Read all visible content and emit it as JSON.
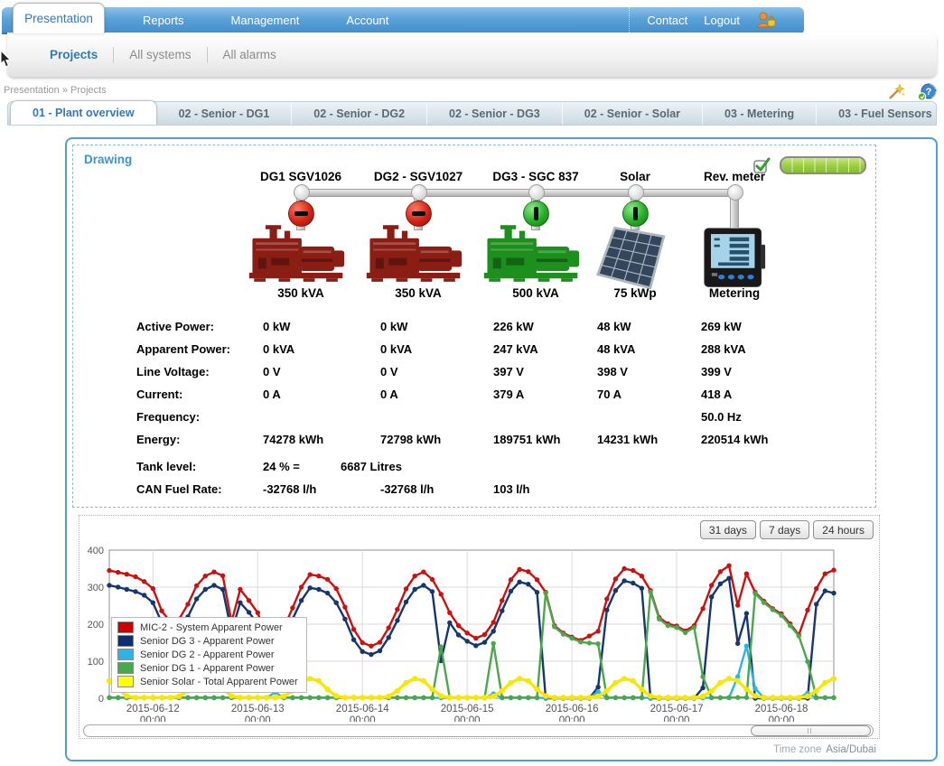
{
  "nav": {
    "active": {
      "label": "Presentation"
    },
    "items": [
      {
        "label": "Reports"
      },
      {
        "label": "Management"
      },
      {
        "label": "Account"
      }
    ],
    "right_items": [
      {
        "label": "Contact"
      },
      {
        "label": "Logout"
      }
    ]
  },
  "subnav": {
    "items": [
      {
        "label": "Projects",
        "active": true
      },
      {
        "label": "All systems",
        "active": false
      },
      {
        "label": "All alarms",
        "active": false
      }
    ]
  },
  "breadcrumb": "Presentation » Projects",
  "page_tabs": [
    {
      "label": "01 - Plant overview",
      "active": true
    },
    {
      "label": "02 - Senior - DG1",
      "active": false
    },
    {
      "label": "02 - Senior - DG2",
      "active": false
    },
    {
      "label": "02 - Senior - DG3",
      "active": false
    },
    {
      "label": "02 - Senior - Solar",
      "active": false
    },
    {
      "label": "03 - Metering",
      "active": false
    },
    {
      "label": "03 - Fuel Sensors",
      "active": false
    }
  ],
  "drawing": {
    "title": "Drawing",
    "status": {
      "check_icon": "green-check",
      "progress_segments": 7,
      "progress_color": "#9ccc3f"
    },
    "units": [
      {
        "name": "DG1 SGV1026",
        "capacity": "350 kVA",
        "type": "generator",
        "color": "#8b1e14",
        "breaker": "open"
      },
      {
        "name": "DG2 - SGV1027",
        "capacity": "350 kVA",
        "type": "generator",
        "color": "#8b1e14",
        "breaker": "open"
      },
      {
        "name": "DG3 - SGC 837",
        "capacity": "500 kVA",
        "type": "generator",
        "color": "#1d8f1d",
        "breaker": "closed"
      },
      {
        "name": "Solar",
        "capacity": "75 kWp",
        "type": "solar",
        "color": "#33465c",
        "breaker": "closed"
      },
      {
        "name": "Rev. meter",
        "capacity": "Metering",
        "type": "meter",
        "color": "#181818",
        "breaker": "none"
      }
    ],
    "rows": [
      {
        "label": "Active Power:",
        "values": [
          "0 kW",
          "0 kW",
          "226 kW",
          "48 kW",
          "269 kW"
        ]
      },
      {
        "label": "Apparent Power:",
        "values": [
          "0 kVA",
          "0 kVA",
          "247 kVA",
          "48 kVA",
          "288 kVA"
        ]
      },
      {
        "label": "Line Voltage:",
        "values": [
          "0 V",
          "0 V",
          "397 V",
          "398 V",
          "399 V"
        ]
      },
      {
        "label": "Current:",
        "values": [
          "0 A",
          "0 A",
          "379 A",
          "70 A",
          "418 A"
        ]
      },
      {
        "label": "Frequency:",
        "values": [
          "",
          "",
          "",
          "",
          "50.0 Hz"
        ]
      },
      {
        "label": "Energy:",
        "values": [
          "74278 kWh",
          "72798 kWh",
          "189751 kWh",
          "14231 kWh",
          "220514 kWh"
        ]
      },
      {
        "label": "Tank level:",
        "values": [
          "24 % =",
          "6687 Litres",
          "",
          "",
          ""
        ]
      },
      {
        "label": "CAN Fuel Rate:",
        "values": [
          "-32768 l/h",
          "-32768 l/h",
          "103 l/h",
          "",
          ""
        ]
      }
    ]
  },
  "chart": {
    "range_buttons": [
      "31 days",
      "7 days",
      "24 hours"
    ],
    "timezone_label": "Time zone",
    "timezone_value": "Asia/Dubai"
  },
  "chart_data": {
    "type": "line",
    "title": "",
    "xlabel": "",
    "ylabel": "",
    "ylim": [
      0,
      400
    ],
    "yticks": [
      400,
      300,
      200,
      100,
      0
    ],
    "grid": true,
    "legend_position": "middle-left",
    "x_start": "2015-06-11 14:00",
    "x_step_hours": 2,
    "x_points": 84,
    "x_tick_indices": [
      5,
      17,
      29,
      41,
      53,
      65,
      77
    ],
    "x_tick_labels": [
      {
        "date": "2015-06-12",
        "time": "00:00"
      },
      {
        "date": "2015-06-13",
        "time": "00:00"
      },
      {
        "date": "2015-06-14",
        "time": "00:00"
      },
      {
        "date": "2015-06-15",
        "time": "00:00"
      },
      {
        "date": "2015-06-16",
        "time": "00:00"
      },
      {
        "date": "2015-06-17",
        "time": "00:00"
      },
      {
        "date": "2015-06-18",
        "time": "00:00"
      }
    ],
    "series": [
      {
        "name": "MIC-2 - System Apparent Power",
        "color": "#cc0f0f",
        "swatch": "#cc0000",
        "values": [
          345,
          340,
          335,
          328,
          315,
          296,
          236,
          206,
          214,
          254,
          304,
          330,
          341,
          331,
          206,
          294,
          264,
          231,
          166,
          156,
          190,
          244,
          300,
          334,
          330,
          321,
          296,
          246,
          186,
          150,
          141,
          151,
          190,
          240,
          295,
          330,
          341,
          321,
          281,
          231,
          196,
          176,
          162,
          172,
          205,
          264,
          320,
          348,
          342,
          320,
          286,
          196,
          176,
          165,
          156,
          168,
          181,
          268,
          322,
          350,
          345,
          330,
          291,
          218,
          201,
          195,
          182,
          196,
          242,
          305,
          342,
          358,
          251,
          336,
          286,
          262,
          242,
          228,
          201,
          171,
          238,
          296,
          336,
          346
        ]
      },
      {
        "name": "Senior DG 3 - Apparent Power",
        "color": "#16366e",
        "swatch": "#0d2d6b",
        "values": [
          305,
          300,
          294,
          288,
          278,
          258,
          205,
          176,
          184,
          220,
          268,
          294,
          305,
          294,
          178,
          258,
          232,
          200,
          140,
          130,
          160,
          214,
          264,
          298,
          294,
          284,
          258,
          214,
          158,
          126,
          118,
          128,
          164,
          210,
          260,
          294,
          305,
          288,
          101,
          204,
          171,
          154,
          142,
          151,
          181,
          236,
          289,
          314,
          308,
          286,
          0,
          0,
          0,
          0,
          0,
          0,
          30,
          238,
          291,
          317,
          311,
          297,
          0,
          0,
          0,
          0,
          0,
          0,
          28,
          274,
          309,
          324,
          148,
          229,
          0,
          0,
          0,
          0,
          0,
          0,
          0,
          254,
          290,
          284
        ]
      },
      {
        "name": "Senior DG 2 - Apparent Power",
        "color": "#2cb3e8",
        "swatch": "#2cb3e8",
        "values": [
          1,
          1,
          1,
          1,
          1,
          1,
          1,
          1,
          1,
          1,
          1,
          1,
          1,
          1,
          1,
          1,
          1,
          1,
          1,
          16,
          1,
          1,
          1,
          1,
          1,
          1,
          1,
          1,
          1,
          1,
          1,
          1,
          1,
          1,
          1,
          1,
          1,
          1,
          1,
          1,
          1,
          1,
          1,
          1,
          12,
          1,
          1,
          1,
          1,
          1,
          1,
          1,
          1,
          1,
          1,
          1,
          18,
          1,
          1,
          1,
          1,
          1,
          1,
          1,
          1,
          1,
          1,
          1,
          1,
          1,
          1,
          1,
          58,
          141,
          26,
          1,
          1,
          1,
          1,
          1,
          14,
          1,
          1,
          1
        ]
      },
      {
        "name": "Senior DG 1 - Apparent Power",
        "color": "#4ca64c",
        "swatch": "#4ca64c",
        "values": [
          2,
          2,
          2,
          2,
          2,
          2,
          2,
          2,
          2,
          2,
          2,
          2,
          2,
          2,
          2,
          2,
          2,
          2,
          2,
          2,
          2,
          2,
          2,
          2,
          2,
          2,
          2,
          2,
          2,
          2,
          2,
          2,
          2,
          2,
          2,
          2,
          2,
          2,
          139,
          2,
          2,
          2,
          2,
          2,
          148,
          2,
          2,
          2,
          2,
          2,
          284,
          193,
          173,
          162,
          152,
          149,
          147,
          2,
          2,
          2,
          2,
          2,
          287,
          214,
          196,
          191,
          177,
          191,
          58,
          2,
          2,
          2,
          2,
          2,
          283,
          258,
          239,
          224,
          196,
          168,
          99,
          2,
          2,
          2
        ]
      },
      {
        "name": "Senior Solar - Total Apparent Power",
        "color": "#f6e800",
        "swatch": "#ffff00",
        "values": [
          47,
          24,
          6,
          2,
          2,
          2,
          2,
          2,
          5,
          20,
          42,
          53,
          47,
          24,
          6,
          2,
          2,
          2,
          2,
          2,
          5,
          20,
          42,
          53,
          47,
          24,
          6,
          2,
          2,
          2,
          2,
          2,
          5,
          20,
          42,
          53,
          47,
          24,
          6,
          2,
          2,
          2,
          2,
          2,
          5,
          20,
          42,
          53,
          47,
          24,
          6,
          2,
          2,
          2,
          2,
          2,
          5,
          20,
          42,
          53,
          47,
          24,
          6,
          2,
          2,
          2,
          2,
          2,
          5,
          20,
          42,
          53,
          47,
          24,
          6,
          2,
          2,
          2,
          2,
          2,
          5,
          20,
          42,
          53
        ]
      }
    ]
  }
}
